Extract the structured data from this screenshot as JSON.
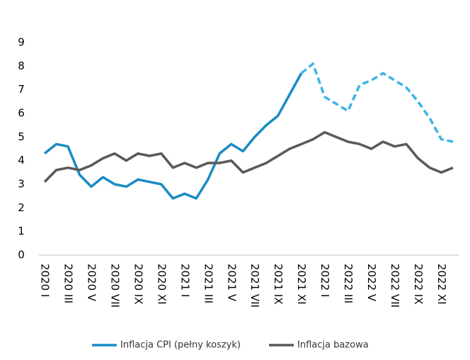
{
  "chart_data": {
    "type": "line",
    "categories": [
      "2020 I",
      null,
      "2020 III",
      null,
      "2020 V",
      null,
      "2020 VII",
      null,
      "2020 IX",
      null,
      "2020 XI",
      null,
      "2021 I",
      null,
      "2021 III",
      null,
      "2021 V",
      null,
      "2021 VII",
      null,
      "2021 IX",
      null,
      "2021 XI",
      null,
      "2022 I",
      null,
      "2022 III",
      null,
      "2022 V",
      null,
      "2022 VII",
      null,
      "2022 IX",
      null,
      "2022 XI",
      null
    ],
    "series": [
      {
        "name": "Inflacja CPI (pełny koszyk)",
        "color": "#1a8bc3",
        "forecast_color": "#3ab5e6",
        "dashed_from": "2021 XI",
        "values": [
          4.3,
          4.7,
          4.6,
          3.4,
          2.9,
          3.3,
          3.0,
          2.9,
          3.2,
          3.1,
          3.0,
          2.4,
          2.6,
          2.4,
          3.2,
          4.3,
          4.7,
          4.4,
          5.0,
          5.5,
          5.9,
          6.8,
          7.7,
          8.1,
          6.7,
          6.4,
          6.1,
          7.2,
          7.4,
          7.7,
          7.4,
          7.1,
          6.5,
          5.8,
          4.9,
          4.8
        ]
      },
      {
        "name": "Inflacja bazowa",
        "color": "#595959",
        "values": [
          3.1,
          3.6,
          3.7,
          3.6,
          3.8,
          4.1,
          4.3,
          4.0,
          4.3,
          4.2,
          4.3,
          3.7,
          3.9,
          3.7,
          3.9,
          3.9,
          4.0,
          3.5,
          3.7,
          3.9,
          4.2,
          4.5,
          4.7,
          4.9,
          5.2,
          5.0,
          4.8,
          4.7,
          4.5,
          4.8,
          4.6,
          4.7,
          4.1,
          3.7,
          3.5,
          3.7
        ]
      }
    ],
    "ylim": [
      0,
      9
    ],
    "yticks": [
      0,
      1,
      2,
      3,
      4,
      5,
      6,
      7,
      8,
      9
    ],
    "grid": false,
    "legend": "bottom"
  }
}
